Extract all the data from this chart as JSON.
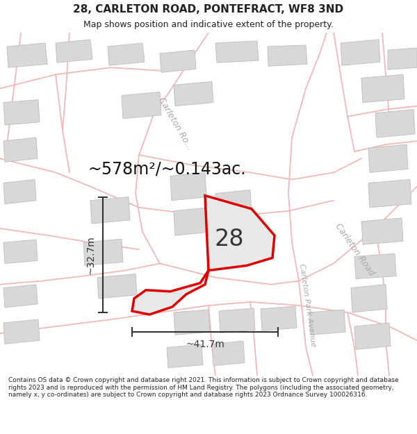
{
  "title": "28, CARLETON ROAD, PONTEFRACT, WF8 3ND",
  "subtitle": "Map shows position and indicative extent of the property.",
  "footer": "Contains OS data © Crown copyright and database right 2021. This information is subject to Crown copyright and database rights 2023 and is reproduced with the permission of HM Land Registry. The polygons (including the associated geometry, namely x, y co-ordinates) are subject to Crown copyright and database rights 2023 Ordnance Survey 100026316.",
  "area_text": "~578m²/~0.143ac.",
  "dim_width": "~41.7m",
  "dim_height": "~32.7m",
  "property_label": "28",
  "map_bg": "#ffffff",
  "property_fill": "#e8e8e8",
  "property_edge": "#dd0000",
  "road_color": "#f0b8b8",
  "building_fill": "#d8d8d8",
  "building_edge": "#c8c0c0",
  "road_label_color": "#aaaaaa",
  "title_color": "#222222",
  "footer_color": "#222222",
  "dim_color": "#333333",
  "title_fontsize": 11,
  "subtitle_fontsize": 9,
  "footer_fontsize": 6.5,
  "area_fontsize": 17,
  "label_fontsize": 24,
  "dim_fontsize": 10,
  "road_label_fontsize": 9
}
